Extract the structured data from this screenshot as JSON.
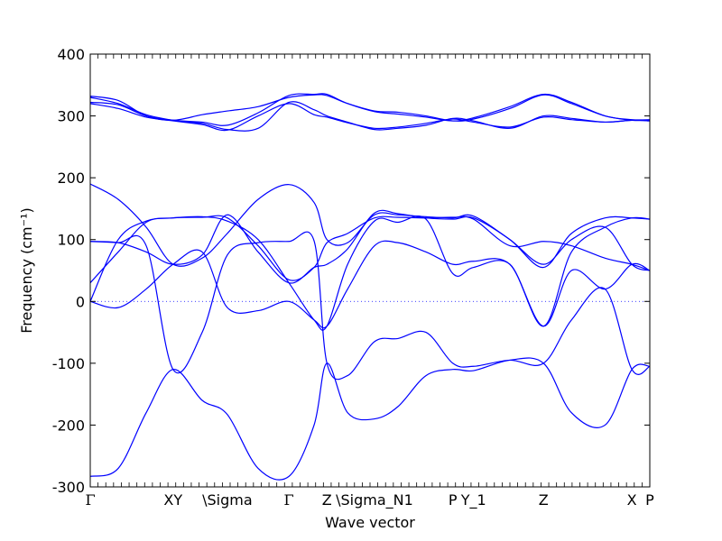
{
  "chart_data": {
    "type": "line",
    "title": "",
    "xlabel": "Wave vector",
    "ylabel": "Frequency (cm⁻¹)",
    "ylim": [
      -300,
      400
    ],
    "yticks": [
      -300,
      -200,
      -100,
      0,
      100,
      200,
      300,
      400
    ],
    "xlim": [
      0,
      1
    ],
    "kpoint_labels": [
      {
        "label": "Γ",
        "x": 0.0
      },
      {
        "label": "XY",
        "x": 0.148
      },
      {
        "label": "\\Sigma",
        "x": 0.245
      },
      {
        "label": "Γ",
        "x": 0.355
      },
      {
        "label": "Z",
        "x": 0.423
      },
      {
        "label": "\\Sigma_N1",
        "x": 0.508
      },
      {
        "label": "P",
        "x": 0.648
      },
      {
        "label": "Y_1",
        "x": 0.685
      },
      {
        "label": "Z",
        "x": 0.81
      },
      {
        "label": "X",
        "x": 0.968
      },
      {
        "label": "P",
        "x": 1.0
      }
    ],
    "zero_line": true,
    "line_color": "#0000ff",
    "series": [
      {
        "x": [
          0.0,
          0.05,
          0.1,
          0.148,
          0.2,
          0.245,
          0.3,
          0.355,
          0.4,
          0.423,
          0.46,
          0.508,
          0.55,
          0.6,
          0.648,
          0.685,
          0.75,
          0.81,
          0.86,
          0.92,
          0.968,
          1.0
        ],
        "values": [
          332,
          325,
          300,
          293,
          302,
          308,
          315,
          330,
          334,
          333,
          320,
          308,
          306,
          300,
          292,
          295,
          312,
          334,
          320,
          300,
          293,
          293
        ]
      },
      {
        "x": [
          0.0,
          0.05,
          0.1,
          0.148,
          0.2,
          0.245,
          0.3,
          0.355,
          0.4,
          0.423,
          0.46,
          0.508,
          0.55,
          0.6,
          0.648,
          0.685,
          0.75,
          0.81,
          0.86,
          0.92,
          0.968,
          1.0
        ],
        "values": [
          322,
          318,
          300,
          293,
          290,
          285,
          305,
          333,
          335,
          335,
          320,
          307,
          303,
          298,
          292,
          297,
          315,
          335,
          322,
          300,
          294,
          294
        ]
      },
      {
        "x": [
          0.0,
          0.05,
          0.1,
          0.148,
          0.2,
          0.245,
          0.3,
          0.355,
          0.4,
          0.423,
          0.46,
          0.508,
          0.55,
          0.6,
          0.648,
          0.685,
          0.75,
          0.81,
          0.86,
          0.92,
          0.968,
          1.0
        ],
        "values": [
          330,
          320,
          302,
          293,
          288,
          278,
          280,
          322,
          310,
          300,
          290,
          278,
          280,
          285,
          296,
          292,
          280,
          300,
          296,
          290,
          293,
          292
        ]
      },
      {
        "x": [
          0.0,
          0.05,
          0.1,
          0.148,
          0.2,
          0.245,
          0.3,
          0.355,
          0.4,
          0.423,
          0.46,
          0.508,
          0.55,
          0.6,
          0.648,
          0.685,
          0.75,
          0.81,
          0.86,
          0.92,
          0.968,
          1.0
        ],
        "values": [
          320,
          312,
          298,
          292,
          286,
          277,
          300,
          320,
          302,
          298,
          289,
          280,
          282,
          288,
          295,
          290,
          282,
          298,
          294,
          290,
          293,
          292
        ]
      },
      {
        "x": [
          0.0,
          0.05,
          0.1,
          0.148,
          0.2,
          0.245,
          0.3,
          0.355,
          0.4,
          0.423,
          0.46,
          0.508,
          0.55,
          0.6,
          0.648,
          0.685,
          0.75,
          0.81,
          0.86,
          0.92,
          0.968,
          1.0
        ],
        "values": [
          190,
          165,
          120,
          60,
          70,
          110,
          165,
          189,
          160,
          100,
          95,
          140,
          140,
          137,
          135,
          138,
          100,
          60,
          100,
          120,
          60,
          50
        ]
      },
      {
        "x": [
          0.0,
          0.05,
          0.1,
          0.148,
          0.2,
          0.245,
          0.3,
          0.355,
          0.4,
          0.423,
          0.46,
          0.508,
          0.55,
          0.6,
          0.648,
          0.685,
          0.75,
          0.81,
          0.86,
          0.92,
          0.968,
          1.0
        ],
        "values": [
          97,
          95,
          80,
          60,
          75,
          140,
          80,
          30,
          55,
          60,
          85,
          143,
          142,
          135,
          133,
          135,
          100,
          55,
          110,
          135,
          135,
          133
        ]
      },
      {
        "x": [
          0.0,
          0.05,
          0.1,
          0.148,
          0.2,
          0.245,
          0.3,
          0.355,
          0.4,
          0.423,
          0.46,
          0.508,
          0.55,
          0.6,
          0.648,
          0.685,
          0.75,
          0.81,
          0.86,
          0.92,
          0.968,
          1.0
        ],
        "values": [
          30,
          80,
          128,
          135,
          136,
          135,
          90,
          35,
          55,
          95,
          110,
          135,
          136,
          135,
          136,
          133,
          90,
          97,
          90,
          70,
          60,
          50
        ]
      },
      {
        "x": [
          0.0,
          0.05,
          0.1,
          0.148,
          0.2,
          0.245,
          0.3,
          0.355,
          0.4,
          0.423,
          0.46,
          0.508,
          0.55,
          0.6,
          0.648,
          0.685,
          0.75,
          0.81,
          0.86,
          0.92,
          0.968,
          1.0
        ],
        "values": [
          0,
          100,
          130,
          135,
          137,
          130,
          100,
          30,
          -30,
          -40,
          60,
          130,
          128,
          133,
          45,
          55,
          60,
          -40,
          80,
          120,
          135,
          133
        ]
      },
      {
        "x": [
          0.0,
          0.05,
          0.1,
          0.148,
          0.2,
          0.245,
          0.3,
          0.355,
          0.4,
          0.423,
          0.46,
          0.508,
          0.55,
          0.6,
          0.648,
          0.685,
          0.75,
          0.81,
          0.86,
          0.92,
          0.968,
          1.0
        ],
        "values": [
          0,
          -10,
          20,
          60,
          80,
          -10,
          -15,
          0,
          -30,
          -40,
          20,
          90,
          95,
          80,
          60,
          65,
          60,
          -40,
          50,
          20,
          60,
          50
        ]
      },
      {
        "x": [
          0.0,
          0.05,
          0.1,
          0.148,
          0.2,
          0.245,
          0.3,
          0.355,
          0.4,
          0.423,
          0.46,
          0.508,
          0.55,
          0.6,
          0.648,
          0.685,
          0.75,
          0.81,
          0.86,
          0.92,
          0.968,
          1.0
        ],
        "values": [
          97,
          95,
          90,
          -110,
          -50,
          75,
          95,
          97,
          98,
          -100,
          -120,
          -65,
          -60,
          -50,
          -100,
          -105,
          -95,
          -100,
          -30,
          20,
          -110,
          -105
        ]
      },
      {
        "x": [
          0.0,
          0.05,
          0.1,
          0.148,
          0.2,
          0.245,
          0.3,
          0.355,
          0.4,
          0.423,
          0.46,
          0.508,
          0.55,
          0.6,
          0.648,
          0.685,
          0.75,
          0.81,
          0.86,
          0.92,
          0.968,
          1.0
        ],
        "values": [
          -283,
          -270,
          -180,
          -110,
          -160,
          -183,
          -270,
          -283,
          -200,
          -100,
          -180,
          -190,
          -170,
          -120,
          -110,
          -112,
          -95,
          -100,
          -180,
          -200,
          -110,
          -105
        ]
      }
    ]
  }
}
